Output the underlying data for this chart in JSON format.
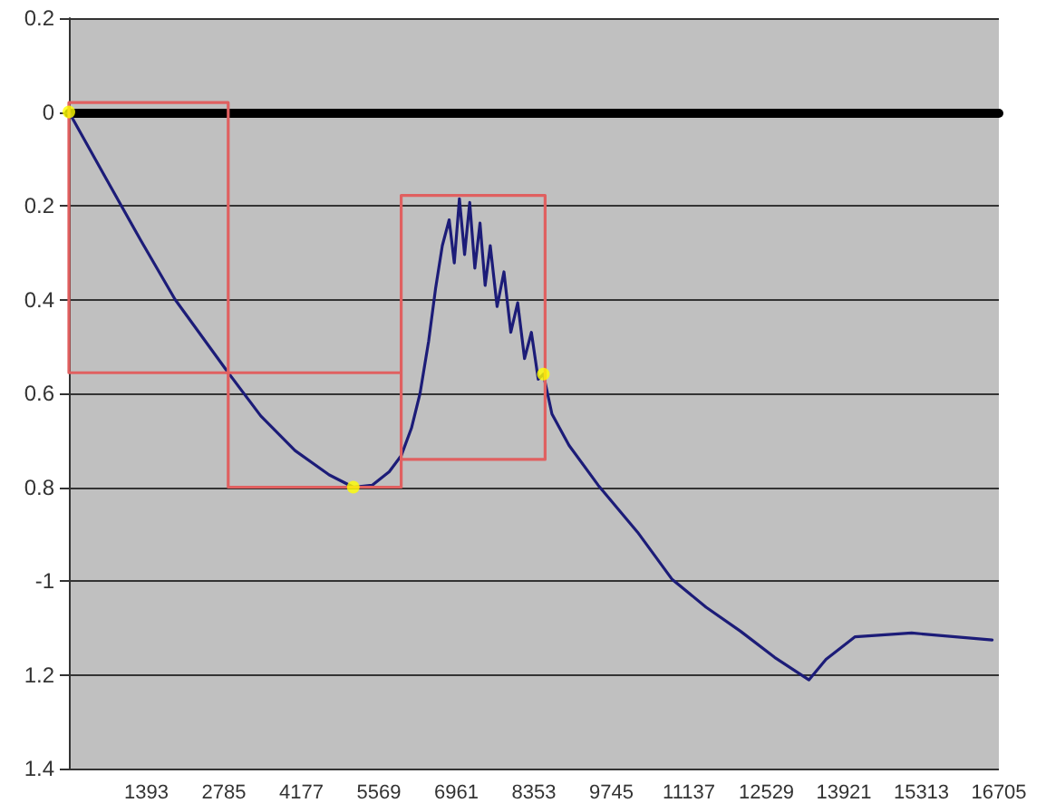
{
  "chart_data": {
    "type": "line",
    "xlim": [
      0,
      16705
    ],
    "ylim": [
      -1.4,
      0.2
    ],
    "xticks": [
      1393,
      2785,
      4177,
      5569,
      6961,
      8353,
      9745,
      11137,
      12529,
      13921,
      15313,
      16705
    ],
    "yticks": [
      0.2,
      0,
      {
        "value": -0.2,
        "label": "0.2"
      },
      {
        "value": -0.4,
        "label": "0.4"
      },
      {
        "value": -0.6,
        "label": "0.6"
      },
      {
        "value": -0.8,
        "label": "0.8"
      },
      {
        "value": -1,
        "label": "-1"
      },
      {
        "value": -1.2,
        "label": "1.2"
      },
      {
        "value": -1.4,
        "label": "1.4"
      }
    ],
    "grid": "y",
    "series": [
      {
        "type": "line",
        "color": "#1c1c78",
        "marker": "none",
        "line_style": "solid",
        "x": [
          0,
          677,
          1292,
          1908,
          2862,
          3446,
          4062,
          4677,
          5108,
          5446,
          5754,
          5969,
          6154,
          6308,
          6462,
          6585,
          6708,
          6831,
          6923,
          7015,
          7108,
          7200,
          7292,
          7385,
          7477,
          7569,
          7692,
          7815,
          7938,
          8062,
          8185,
          8308,
          8431,
          8523,
          8677,
          8985,
          9508,
          10215,
          10831,
          11446,
          12062,
          12677,
          13292,
          13600,
          14123,
          15138,
          16585
        ],
        "values": [
          0,
          -0.144,
          -0.274,
          -0.4,
          -0.556,
          -0.648,
          -0.722,
          -0.774,
          -0.8,
          -0.796,
          -0.767,
          -0.733,
          -0.674,
          -0.6,
          -0.489,
          -0.378,
          -0.285,
          -0.23,
          -0.322,
          -0.185,
          -0.304,
          -0.193,
          -0.333,
          -0.237,
          -0.37,
          -0.285,
          -0.415,
          -0.341,
          -0.47,
          -0.407,
          -0.526,
          -0.47,
          -0.57,
          -0.559,
          -0.644,
          -0.711,
          -0.796,
          -0.896,
          -0.996,
          -1.056,
          -1.107,
          -1.163,
          -1.211,
          -1.167,
          -1.119,
          -1.111,
          -1.126
        ]
      },
      {
        "type": "line",
        "color": "#e06060",
        "marker": "none",
        "line_style": "solid",
        "x": [
          0,
          0,
          2862,
          2862,
          null,
          0,
          2862,
          2862,
          2862,
          5969,
          5969,
          null,
          2862,
          5969,
          5969,
          5969,
          8554,
          8554,
          null,
          5969,
          8554
        ],
        "values": [
          -0.556,
          0.02,
          0.02,
          -0.556,
          null,
          -0.556,
          -0.556,
          -0.8,
          -0.556,
          -0.556,
          -0.8,
          null,
          -0.8,
          -0.8,
          -0.741,
          -0.178,
          -0.178,
          -0.741,
          null,
          -0.741,
          -0.741
        ]
      },
      {
        "type": "scatter",
        "color": "#ffff00",
        "marker": "circle",
        "x": [
          0,
          5108,
          8523
        ],
        "values": [
          0,
          -0.8,
          -0.559
        ]
      }
    ]
  }
}
